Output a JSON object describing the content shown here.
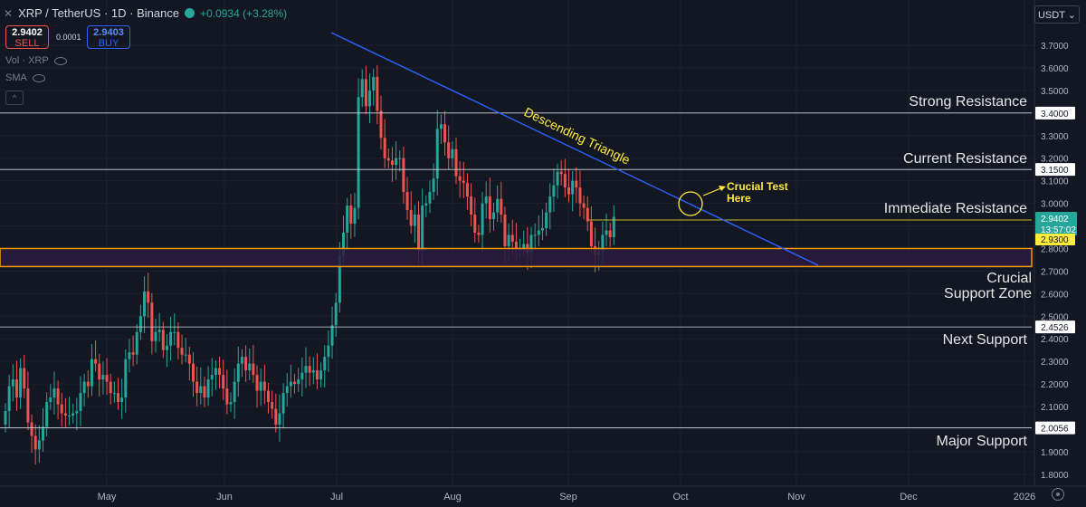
{
  "header": {
    "symbol_text": "XRP / TetherUS · 1D · Binance",
    "change_text": "+0.0934 (+3.28%)",
    "sell_price": "2.9402",
    "sell_label": "SELL",
    "spread": "0.0001",
    "buy_price": "2.9403",
    "buy_label": "BUY",
    "indicator_vol": "Vol · XRP",
    "indicator_sma": "SMA",
    "collapse_glyph": "^"
  },
  "currency_button": "USDT ⌄",
  "colors": {
    "background": "#131722",
    "up": "#26a69a",
    "down": "#ef5350",
    "trendline": "#2962ff",
    "support_zone_border": "#ff9800",
    "support_zone_fill": "#2a1a3e",
    "annotation": "#ffeb3b"
  },
  "chart_data": {
    "type": "candlestick",
    "x_ticks": [
      "May",
      "Jun",
      "Jul",
      "Aug",
      "Sep",
      "Oct",
      "Nov",
      "Dec",
      "2026"
    ],
    "y_ticks": [
      "3.7000",
      "3.6000",
      "3.5000",
      "3.4000",
      "3.3000",
      "3.2000",
      "3.1000",
      "3.0000",
      "2.9000",
      "2.8000",
      "2.7000",
      "2.6000",
      "2.5000",
      "2.4000",
      "2.3000",
      "2.2000",
      "2.1000",
      "2.0000",
      "1.9000",
      "1.8000"
    ],
    "ylim": [
      1.75,
      3.78
    ],
    "close_series": [
      2.08,
      2.19,
      2.22,
      2.14,
      2.27,
      2.18,
      2.03,
      1.97,
      1.91,
      1.95,
      2.01,
      2.12,
      2.14,
      2.18,
      2.11,
      2.07,
      2.06,
      2.06,
      2.07,
      2.08,
      2.16,
      2.21,
      2.19,
      2.31,
      2.29,
      2.22,
      2.24,
      2.21,
      2.16,
      2.16,
      2.12,
      2.14,
      2.31,
      2.34,
      2.33,
      2.43,
      2.5,
      2.61,
      2.56,
      2.39,
      2.43,
      2.44,
      2.35,
      2.37,
      2.43,
      2.43,
      2.36,
      2.33,
      2.33,
      2.29,
      2.21,
      2.16,
      2.19,
      2.14,
      2.22,
      2.24,
      2.27,
      2.24,
      2.18,
      2.11,
      2.12,
      2.21,
      2.29,
      2.32,
      2.26,
      2.29,
      2.24,
      2.17,
      2.21,
      2.17,
      2.12,
      2.09,
      2.02,
      2.07,
      2.16,
      2.19,
      2.21,
      2.2,
      2.22,
      2.25,
      2.28,
      2.25,
      2.26,
      2.22,
      2.26,
      2.32,
      2.37,
      2.46,
      2.56,
      2.77,
      2.87,
      2.99,
      2.91,
      2.98,
      3.47,
      3.55,
      3.43,
      3.5,
      3.56,
      3.41,
      3.29,
      3.2,
      3.19,
      3.17,
      3.2,
      3.2,
      3.05,
      2.97,
      2.9,
      2.95,
      2.79,
      2.99,
      3.0,
      3.05,
      3.11,
      3.33,
      3.35,
      3.27,
      3.2,
      3.24,
      3.12,
      3.1,
      3.09,
      3.03,
      2.95,
      2.87,
      2.86,
      3.0,
      3.03,
      2.93,
      2.96,
      3.02,
      2.95,
      2.81,
      2.86,
      2.83,
      2.8,
      2.8,
      2.82,
      2.78,
      2.86,
      2.86,
      2.88,
      2.89,
      2.96,
      3.03,
      3.08,
      3.14,
      3.13,
      3.07,
      3.04,
      3.1,
      3.07,
      3.0,
      2.98,
      2.92,
      2.81,
      2.77,
      2.79,
      2.86,
      2.88,
      2.85,
      2.94
    ],
    "levels": [
      {
        "value": "3.4000",
        "label": "Strong Resistance"
      },
      {
        "value": "3.1500",
        "label": "Current Resistance"
      },
      {
        "value": "2.4526",
        "label": "Next Support"
      },
      {
        "value": "2.0056",
        "label": "Major Support"
      }
    ],
    "immediate_resistance_label": "Immediate Resistance",
    "support_zone_label_line1": "Crucial",
    "support_zone_label_line2": "Support Zone",
    "support_zone_range": [
      2.72,
      2.8
    ],
    "current_price": "2.9402",
    "countdown": "13:57:02",
    "immediate_price_tag": "2.9300",
    "pattern_label": "Descending Triangle",
    "annotation_line1": "Crucial Test",
    "annotation_line2": "Here"
  }
}
